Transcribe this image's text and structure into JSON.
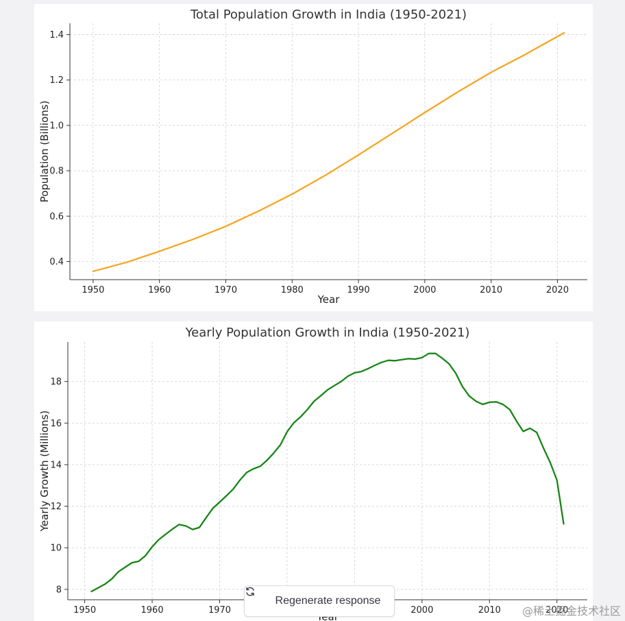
{
  "chart_data": [
    {
      "type": "line",
      "title": "Total Population Growth in India (1950-2021)",
      "xlabel": "Year",
      "ylabel": "Population (Billions)",
      "xlim": [
        1946.5,
        2024.5
      ],
      "ylim": [
        0.32,
        1.45
      ],
      "xticks": [
        1950,
        1960,
        1970,
        1980,
        1990,
        2000,
        2010,
        2020
      ],
      "yticks": [
        0.4,
        0.6,
        0.8,
        1.0,
        1.2,
        1.4
      ],
      "ytick_labels": [
        "0.4",
        "0.6",
        "0.8",
        "1.0",
        "1.2",
        "1.4"
      ],
      "grid": true,
      "color": "#f5a623",
      "x": [
        1950,
        1955,
        1960,
        1965,
        1970,
        1975,
        1980,
        1985,
        1990,
        1995,
        2000,
        2005,
        2010,
        2015,
        2021
      ],
      "y": [
        0.357,
        0.396,
        0.445,
        0.497,
        0.555,
        0.623,
        0.697,
        0.78,
        0.87,
        0.963,
        1.057,
        1.148,
        1.234,
        1.31,
        1.408
      ]
    },
    {
      "type": "line",
      "title": "Yearly Population Growth in India (1950-2021)",
      "xlabel": "Year",
      "ylabel": "Yearly Growth (Millions)",
      "xlim": [
        1947.5,
        2024.5
      ],
      "ylim": [
        7.5,
        19.9
      ],
      "xticks": [
        1950,
        1960,
        1970,
        1980,
        1990,
        2000,
        2010,
        2020
      ],
      "yticks": [
        8,
        10,
        12,
        14,
        16,
        18
      ],
      "ytick_labels": [
        "8",
        "10",
        "12",
        "14",
        "16",
        "18"
      ],
      "grid": true,
      "color": "#158515",
      "x": [
        1951,
        1953,
        1954,
        1955,
        1957,
        1958,
        1959,
        1960,
        1961,
        1962,
        1963,
        1964,
        1965,
        1966,
        1967,
        1968,
        1969,
        1970,
        1971,
        1972,
        1973,
        1974,
        1975,
        1976,
        1977,
        1978,
        1979,
        1980,
        1981,
        1982,
        1983,
        1984,
        1985,
        1986,
        1987,
        1988,
        1989,
        1990,
        1991,
        1992,
        1993,
        1994,
        1995,
        1996,
        1997,
        1998,
        1999,
        2000,
        2001,
        2002,
        2003,
        2004,
        2005,
        2006,
        2007,
        2008,
        2009,
        2010,
        2011,
        2012,
        2013,
        2014,
        2015,
        2016,
        2017,
        2018,
        2019,
        2020,
        2021
      ],
      "y": [
        7.9,
        8.25,
        8.5,
        8.85,
        9.28,
        9.35,
        9.62,
        10.05,
        10.4,
        10.65,
        10.9,
        11.12,
        11.05,
        10.88,
        10.98,
        11.45,
        11.9,
        12.2,
        12.5,
        12.82,
        13.25,
        13.62,
        13.8,
        13.92,
        14.2,
        14.55,
        14.95,
        15.58,
        16.02,
        16.3,
        16.65,
        17.05,
        17.32,
        17.6,
        17.8,
        18.0,
        18.25,
        18.42,
        18.48,
        18.62,
        18.78,
        18.92,
        19.02,
        19.0,
        19.05,
        19.1,
        19.08,
        19.15,
        19.35,
        19.35,
        19.12,
        18.85,
        18.4,
        17.75,
        17.3,
        17.05,
        16.9,
        17.0,
        17.02,
        16.9,
        16.65,
        16.1,
        15.6,
        15.75,
        15.55,
        14.8,
        14.1,
        13.25,
        11.15
      ]
    }
  ],
  "ui": {
    "regenerate_label": "Regenerate response",
    "watermark": "@稀土掘金技术社区"
  }
}
